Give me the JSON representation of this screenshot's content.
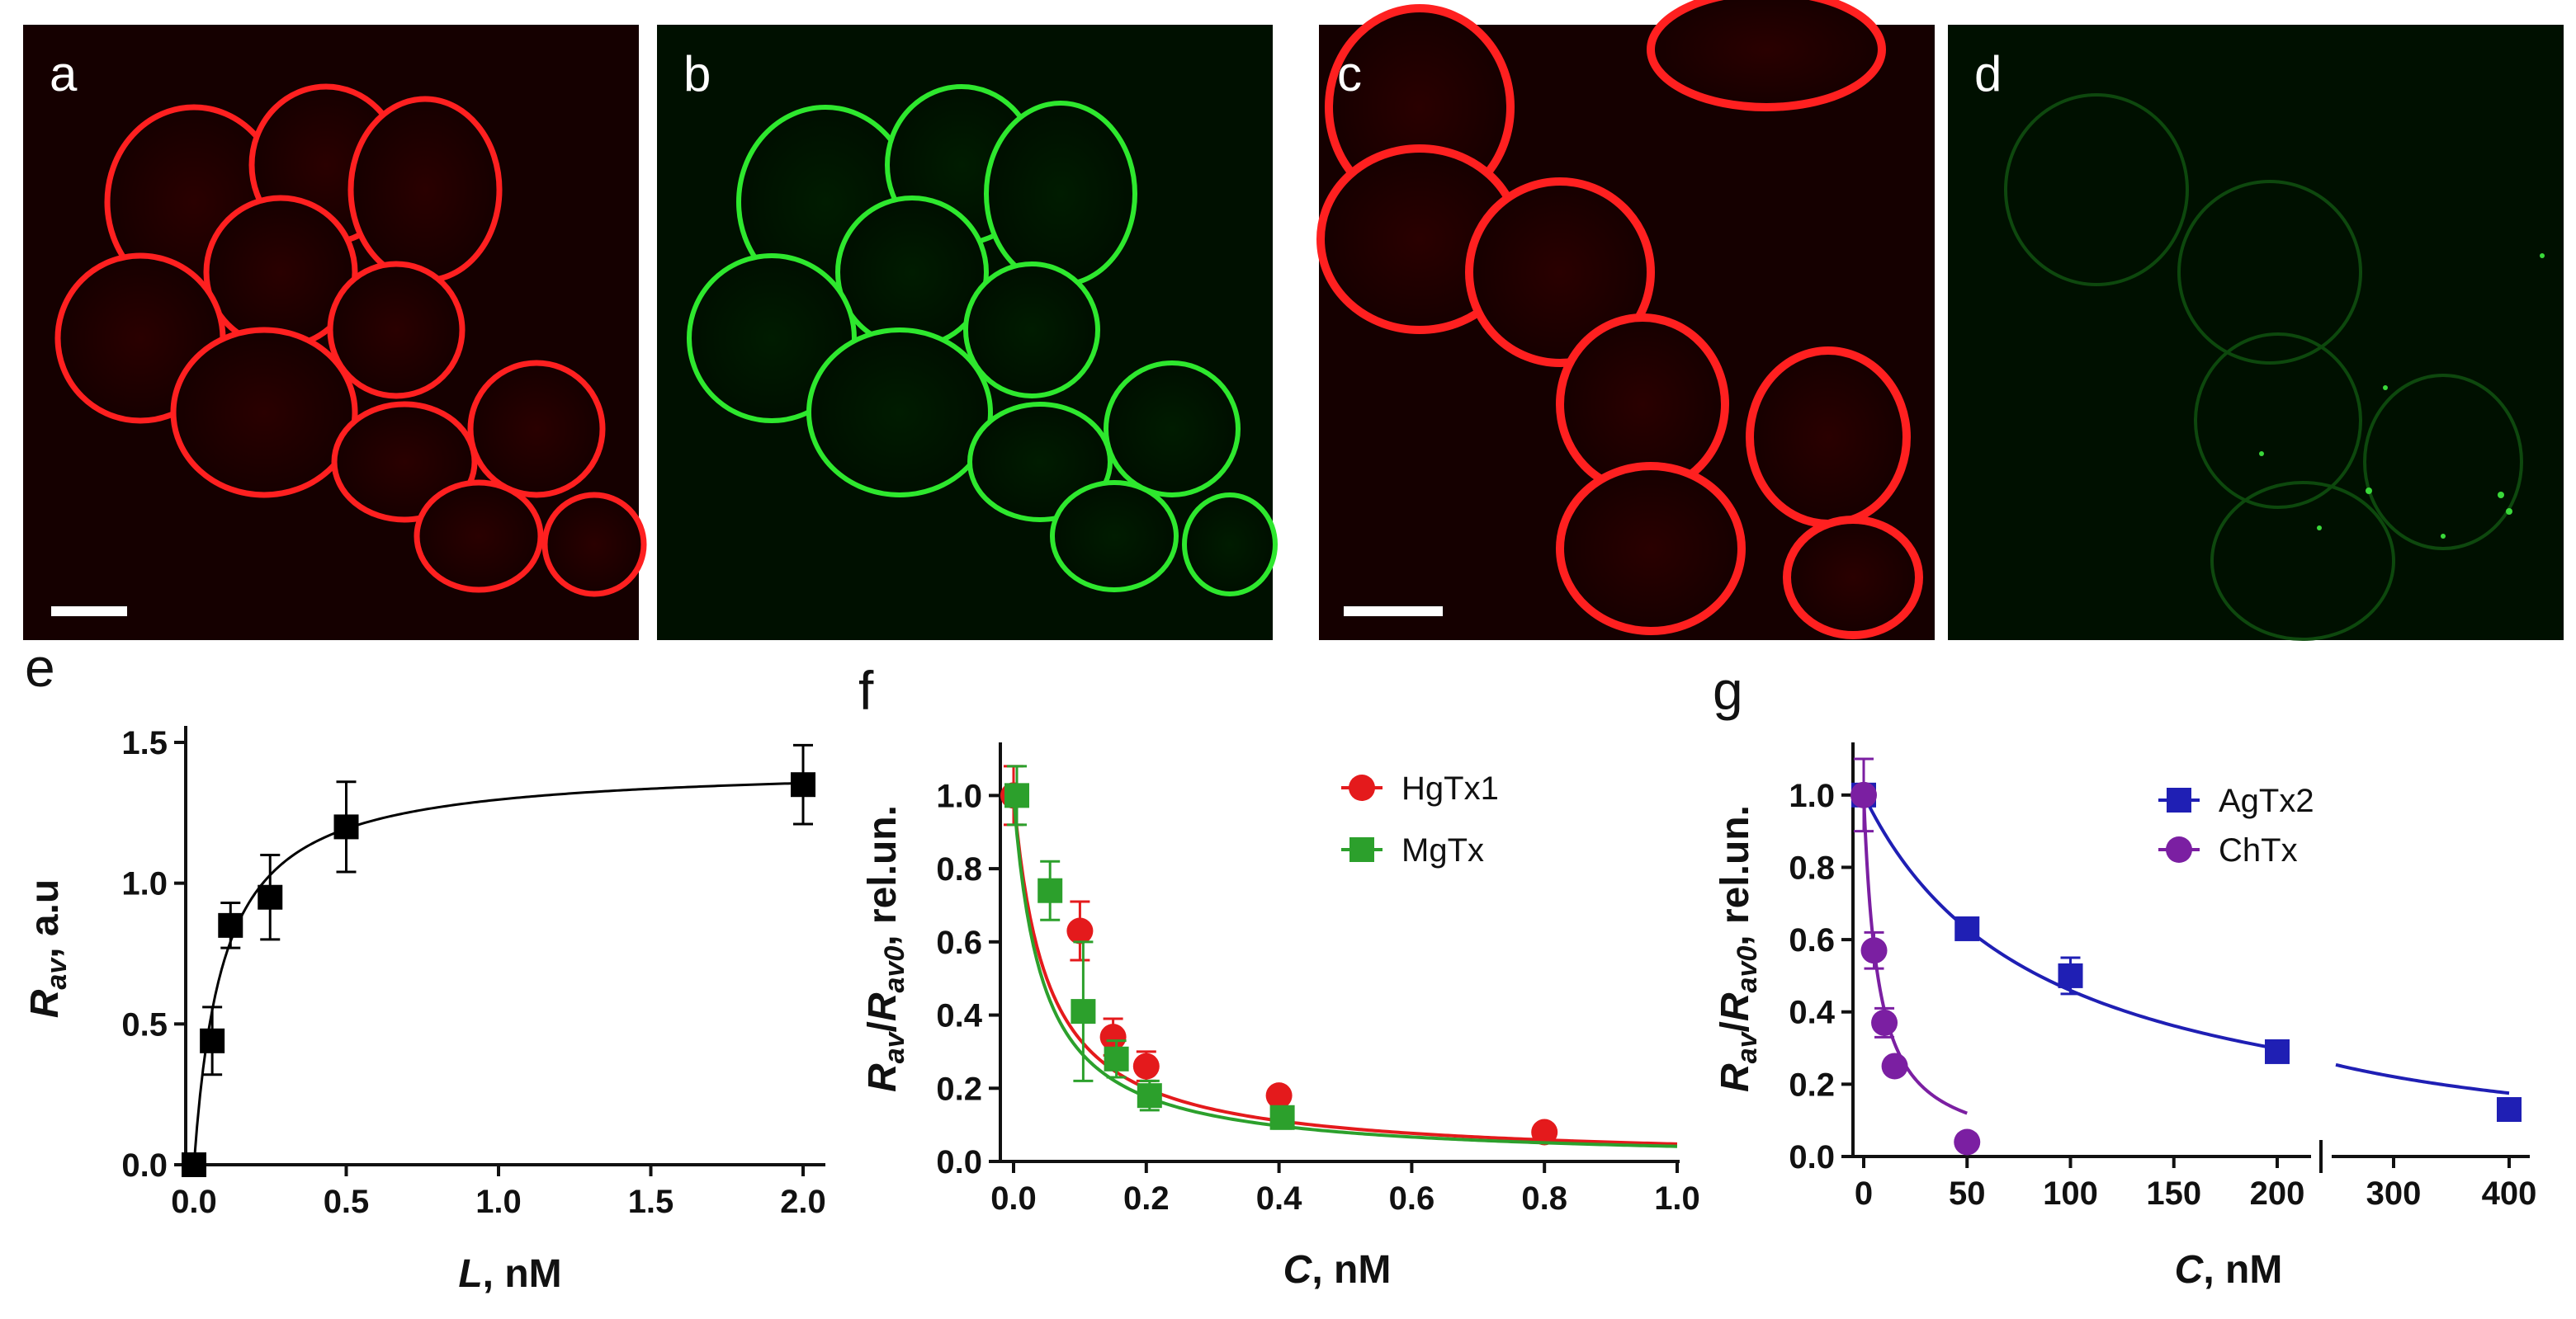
{
  "micrographs": [
    {
      "label": "a",
      "channel": "red",
      "scale_bar": true
    },
    {
      "label": "b",
      "channel": "green",
      "scale_bar": false
    },
    {
      "label": "c",
      "channel": "red",
      "scale_bar": true
    },
    {
      "label": "d",
      "channel": "green",
      "scale_bar": false
    }
  ],
  "colors": {
    "red": "#e41a1c",
    "green": "#2ca02c",
    "blue": "#1f1fb4",
    "purple": "#7b1fa2",
    "black": "#000000"
  },
  "chart_data": [
    {
      "panel": "e",
      "type": "scatter",
      "xlabel": "L, nM",
      "ylabel": "Rav, a.u",
      "xlim": [
        -0.05,
        2.1
      ],
      "ylim": [
        0,
        1.5
      ],
      "xticks": [
        "0.0",
        "0.5",
        "1.0",
        "1.5",
        "2.0"
      ],
      "yticks": [
        "0.0",
        "0.5",
        "1.0",
        "1.5"
      ],
      "series": [
        {
          "color": "black",
          "marker": "square",
          "x": [
            0,
            0.06,
            0.12,
            0.25,
            0.5,
            2.0
          ],
          "y": [
            0,
            0.44,
            0.85,
            0.95,
            1.2,
            1.35
          ],
          "err": [
            0,
            0.12,
            0.08,
            0.15,
            0.16,
            0.14
          ],
          "fit": "hyperbolic"
        }
      ]
    },
    {
      "panel": "f",
      "type": "scatter",
      "xlabel": "C, nM",
      "ylabel": "Rav/Rav0, rel.un.",
      "xlim": [
        -0.02,
        1.0
      ],
      "ylim": [
        0,
        1.1
      ],
      "xticks": [
        "0.0",
        "0.2",
        "0.4",
        "0.6",
        "0.8",
        "1.0"
      ],
      "yticks": [
        "0.0",
        "0.2",
        "0.4",
        "0.6",
        "0.8",
        "1.0"
      ],
      "legend_position": "top-right",
      "series": [
        {
          "name": "HgTx1",
          "color": "red",
          "marker": "circle",
          "x": [
            0,
            0.1,
            0.15,
            0.2,
            0.4,
            0.8
          ],
          "y": [
            1.0,
            0.63,
            0.34,
            0.26,
            0.18,
            0.08
          ],
          "err": [
            0.08,
            0.08,
            0.05,
            0.04,
            0.02,
            0.02
          ],
          "fit": "decay"
        },
        {
          "name": "MgTx",
          "color": "green",
          "marker": "square",
          "x": [
            0,
            0.05,
            0.1,
            0.15,
            0.2,
            0.4
          ],
          "y": [
            1.0,
            0.74,
            0.41,
            0.28,
            0.18,
            0.12
          ],
          "err": [
            0.08,
            0.08,
            0.19,
            0.05,
            0.04,
            0.03
          ],
          "fit": "decay"
        }
      ]
    },
    {
      "panel": "g",
      "type": "scatter",
      "xlabel": "C, nM",
      "ylabel": "Rav/Rav0, rel.un.",
      "xlim": [
        -5,
        410
      ],
      "axis_break": [
        205,
        250
      ],
      "ylim": [
        0,
        1.1
      ],
      "xticks": [
        "0",
        "50",
        "100",
        "150",
        "200",
        "300",
        "400"
      ],
      "yticks": [
        "0.0",
        "0.2",
        "0.4",
        "0.6",
        "0.8",
        "1.0"
      ],
      "legend_position": "top-right",
      "series": [
        {
          "name": "AgTx2",
          "color": "blue",
          "marker": "square",
          "x": [
            0,
            50,
            100,
            200,
            400
          ],
          "y": [
            1.0,
            0.63,
            0.5,
            0.29,
            0.13
          ],
          "err": [
            0.02,
            0.02,
            0.05,
            0.02,
            0.03
          ],
          "fit": "decay"
        },
        {
          "name": "ChTx",
          "color": "purple",
          "marker": "circle",
          "x": [
            0,
            5,
            10,
            15,
            50
          ],
          "y": [
            1.0,
            0.57,
            0.37,
            0.25,
            0.04
          ],
          "err": [
            0.1,
            0.05,
            0.04,
            0.02,
            0.01
          ],
          "fit": "decay"
        }
      ]
    }
  ]
}
